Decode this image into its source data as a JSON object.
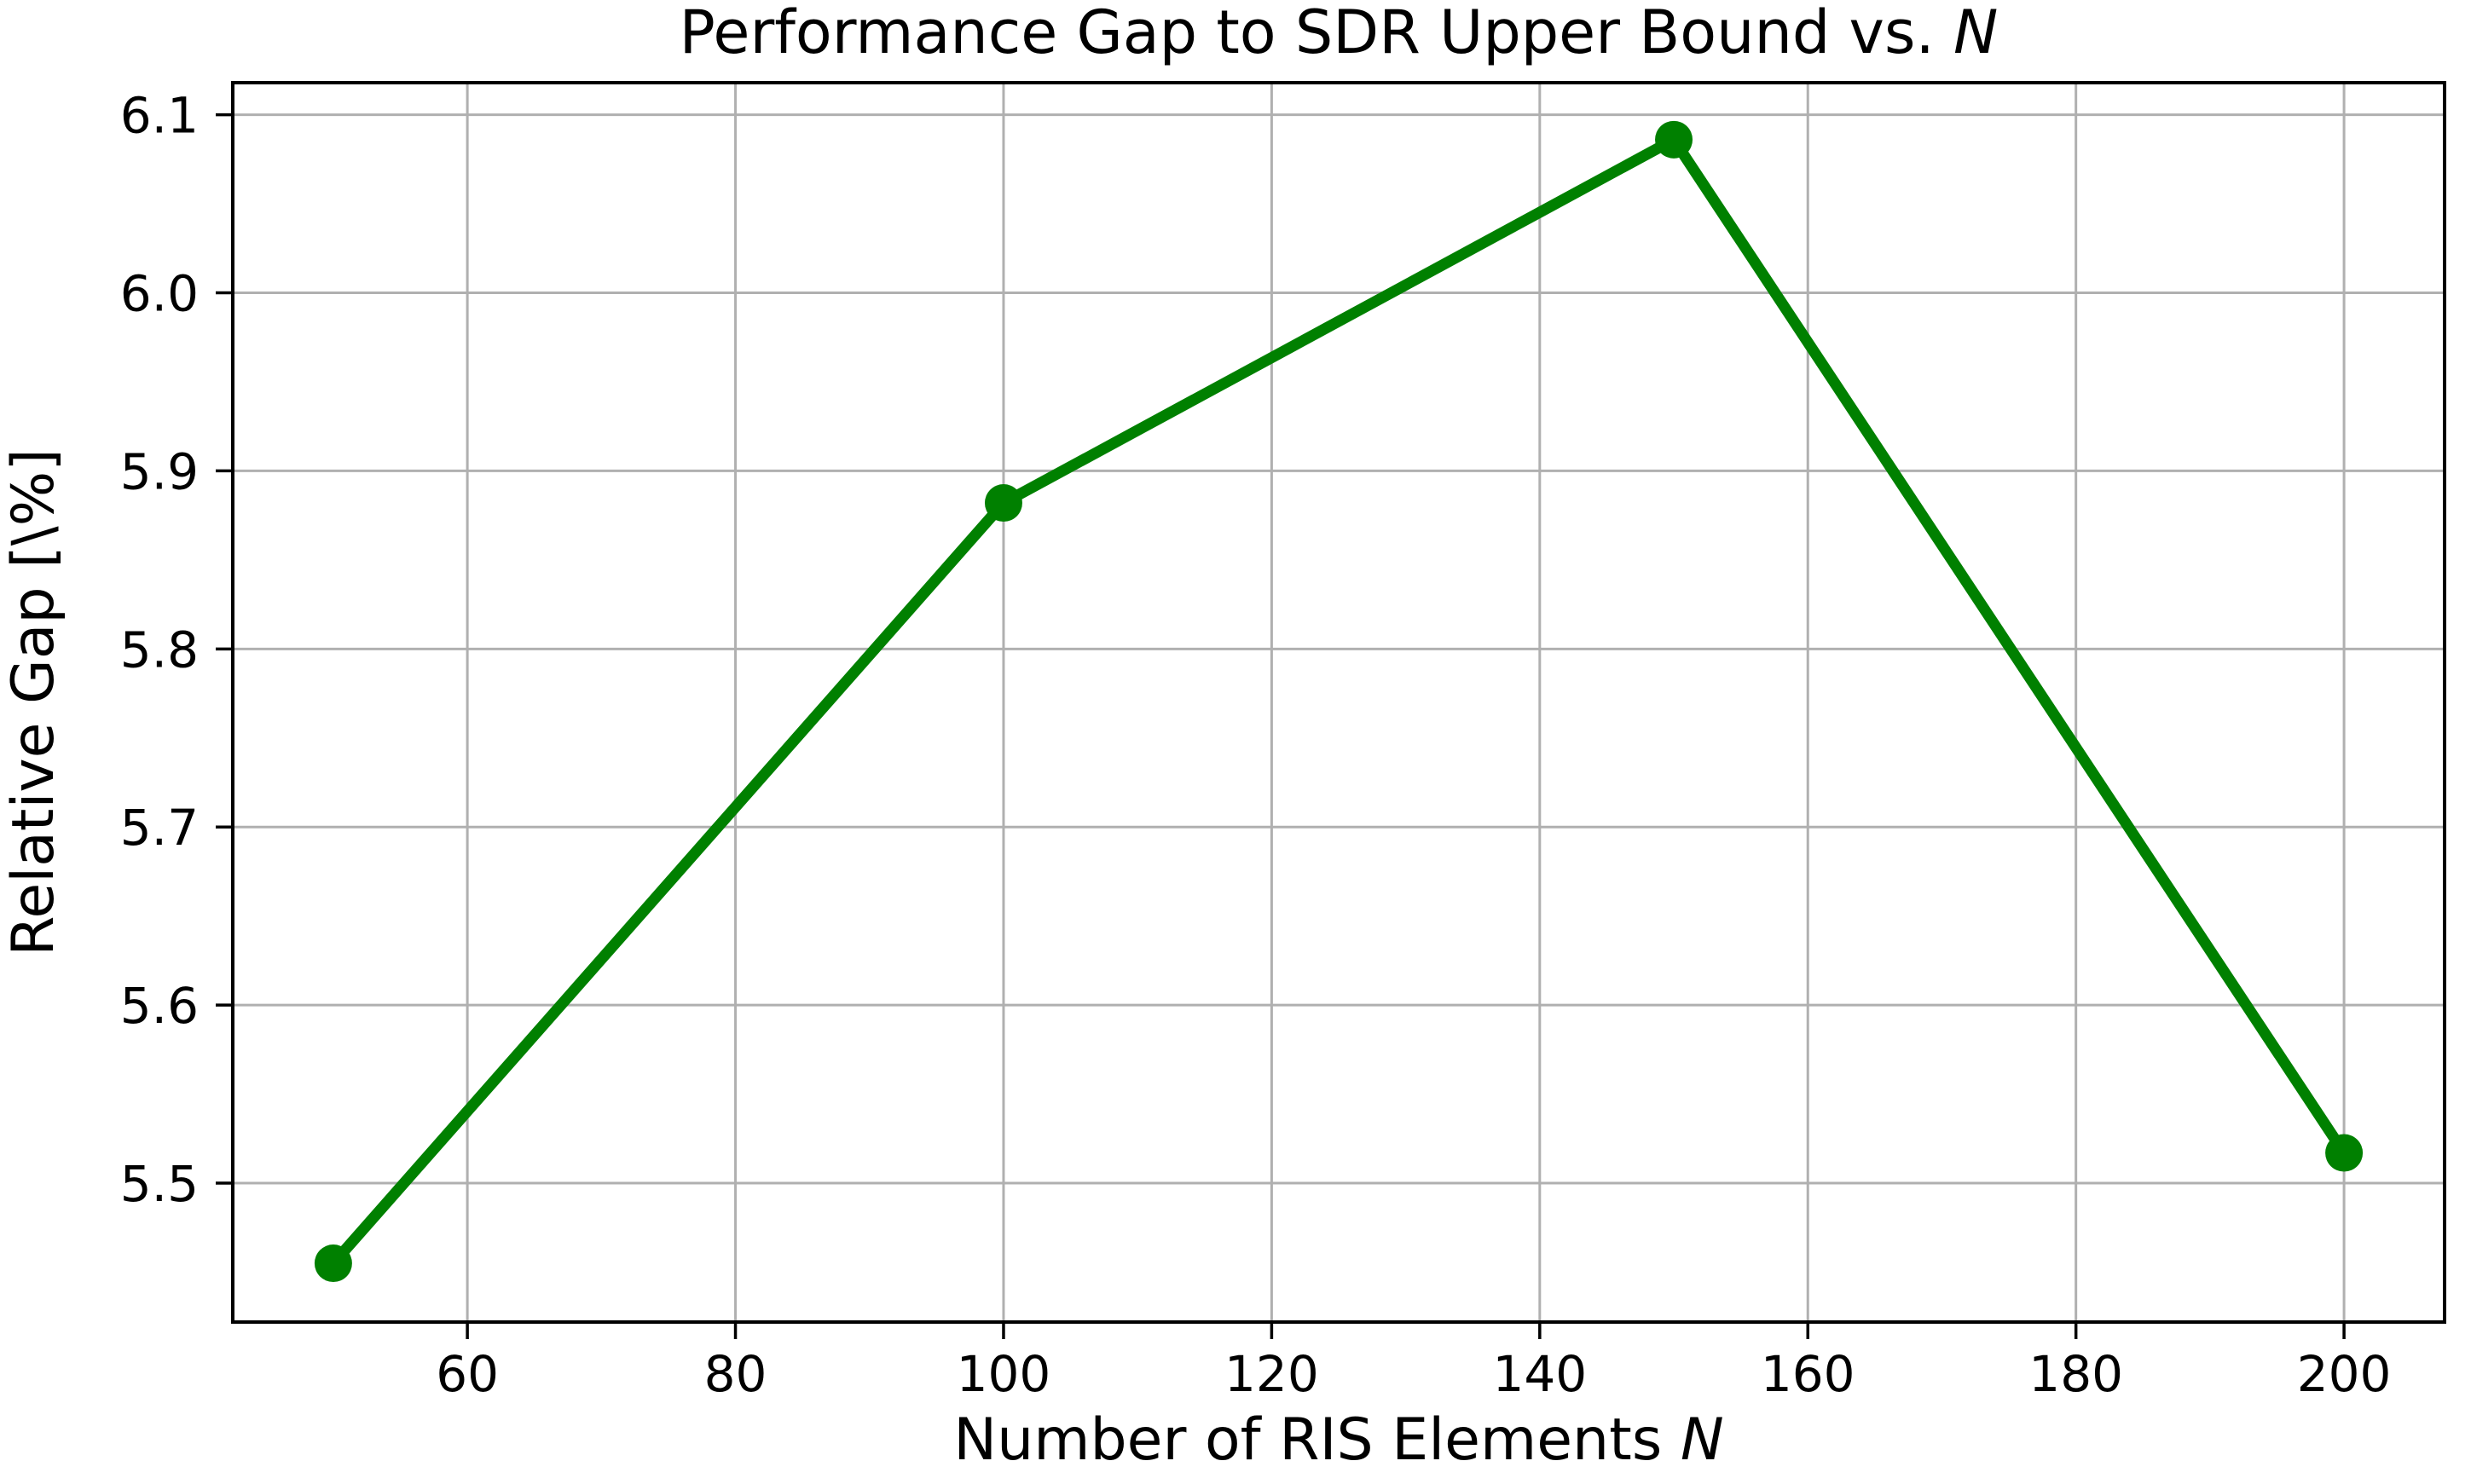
{
  "figure": {
    "background": "#ffffff"
  },
  "chart_data": {
    "type": "line",
    "title_main": "Performance Gap to SDR Upper Bound vs. ",
    "title_italic": "N",
    "xlabel_main": "Number of RIS Elements ",
    "xlabel_italic": "N",
    "ylabel": "Relative Gap [\\%]",
    "x": [
      50,
      100,
      150,
      200
    ],
    "y": [
      5.455,
      5.882,
      6.086,
      5.517
    ],
    "xlim": [
      42.5,
      207.5
    ],
    "ylim": [
      5.422,
      6.118
    ],
    "xticks": {
      "values": [
        60,
        80,
        100,
        120,
        140,
        160,
        180,
        200
      ],
      "labels": [
        "60",
        "80",
        "100",
        "120",
        "140",
        "160",
        "180",
        "200"
      ]
    },
    "yticks": {
      "values": [
        5.5,
        5.6,
        5.7,
        5.8,
        5.9,
        6.0,
        6.1
      ],
      "labels": [
        "5.5",
        "5.6",
        "5.7",
        "5.8",
        "5.9",
        "6.0",
        "6.1"
      ]
    },
    "grid": true,
    "legend": "none",
    "colors": {
      "line": "#008000",
      "marker": "#008000",
      "grid": "#b0b0b0",
      "spine": "#000000",
      "text": "#000000"
    }
  }
}
